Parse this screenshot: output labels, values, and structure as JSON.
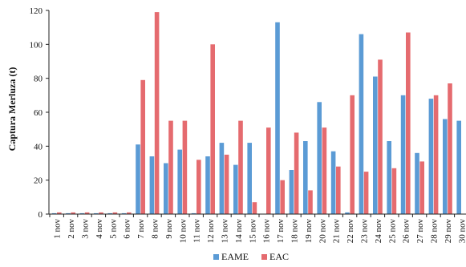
{
  "chart_data": {
    "type": "bar",
    "title": "",
    "xlabel": "",
    "ylabel": "Captura Merluza (t)",
    "ylim": [
      0,
      120
    ],
    "yticks": [
      0,
      20,
      40,
      60,
      80,
      100,
      120
    ],
    "grid": false,
    "legend_position": "bottom",
    "categories": [
      "1 nov",
      "2 nov",
      "3 nov",
      "4 nov",
      "5 nov",
      "6 nov",
      "7 nov",
      "8 nov",
      "9 nov",
      "10 nov",
      "11 nov",
      "12 nov",
      "13 nov",
      "14 nov",
      "15 nov",
      "16 nov",
      "17 nov",
      "18 nov",
      "19 nov",
      "20 nov",
      "21 nov",
      "22 nov",
      "23 nov",
      "24 nov",
      "25 nov",
      "26 nov",
      "27 nov",
      "28 nov",
      "29 nov",
      "30 nov"
    ],
    "series": [
      {
        "name": "EAME",
        "color": "#5b9bd5",
        "values": [
          0.5,
          0.5,
          0.5,
          0.5,
          0.5,
          0.5,
          41,
          34,
          30,
          38,
          0.5,
          34,
          42,
          29,
          42,
          0,
          113,
          26,
          43,
          66,
          37,
          1,
          106,
          81,
          43,
          70,
          36,
          68,
          56,
          55
        ]
      },
      {
        "name": "EAC",
        "color": "#e56b6f",
        "values": [
          1,
          1,
          1,
          1,
          1,
          1,
          79,
          119,
          55,
          55,
          32,
          100,
          35,
          55,
          7,
          51,
          20,
          48,
          14,
          51,
          28,
          70,
          25,
          91,
          27,
          107,
          31,
          70,
          77,
          0
        ]
      }
    ]
  }
}
